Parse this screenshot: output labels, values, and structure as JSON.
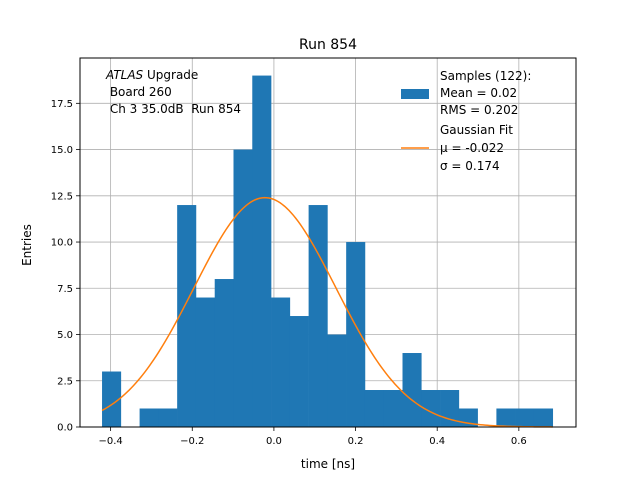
{
  "colors": {
    "bar": "#1f77b4",
    "fit": "#ff7f0e",
    "grid": "#b0b0b0",
    "axis": "#000000"
  },
  "chart_data": {
    "type": "bar",
    "title": "Run 854",
    "xlabel": "time [ns]",
    "ylabel": "Entries",
    "xlim": [
      -0.475,
      0.74
    ],
    "ylim": [
      0,
      19.95
    ],
    "grid": true,
    "legend_position": "top-right",
    "xticks": [
      -0.4,
      -0.2,
      0.0,
      0.2,
      0.4,
      0.6
    ],
    "xtick_labels": [
      "−0.4",
      "−0.2",
      "0.0",
      "0.2",
      "0.4",
      "0.6"
    ],
    "yticks": [
      0.0,
      2.5,
      5.0,
      7.5,
      10.0,
      12.5,
      15.0,
      17.5
    ],
    "ytick_labels": [
      "0.0",
      "2.5",
      "5.0",
      "7.5",
      "10.0",
      "12.5",
      "15.0",
      "17.5"
    ],
    "bin_edges": [
      -0.421,
      -0.375,
      -0.329,
      -0.283,
      -0.237,
      -0.191,
      -0.145,
      -0.099,
      -0.053,
      -0.007,
      0.039,
      0.085,
      0.131,
      0.177,
      0.223,
      0.269,
      0.315,
      0.361,
      0.407,
      0.453,
      0.499,
      0.545,
      0.591,
      0.637,
      0.683
    ],
    "counts": [
      3,
      0,
      1,
      1,
      12,
      7,
      8,
      15,
      19,
      7,
      6,
      12,
      5,
      10,
      2,
      2,
      4,
      2,
      2,
      1,
      0,
      1,
      1,
      1
    ],
    "series": [
      {
        "name": "Samples (122):",
        "kind": "histogram",
        "stats": [
          "Mean = 0.02",
          "RMS = 0.202"
        ]
      },
      {
        "name": "Gaussian Fit",
        "kind": "line",
        "amplitude": 12.4,
        "mu": -0.022,
        "sigma": 0.174,
        "x_range": [
          -0.421,
          0.683
        ],
        "stats_text": [
          "μ = -0.022",
          "σ = 0.174"
        ]
      }
    ],
    "annotation": {
      "italic_part": "ATLAS",
      "line1_rest": " Upgrade",
      "line2": " Board 260",
      "line3": " Ch 3 35.0dB  Run 854"
    }
  }
}
